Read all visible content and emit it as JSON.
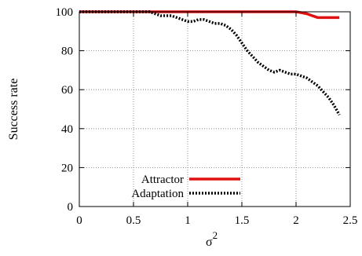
{
  "chart_data": {
    "type": "line",
    "title": "",
    "xlabel": "σ",
    "xlabel_superscript": "2",
    "ylabel": "Success rate",
    "xlim": [
      0,
      2.5
    ],
    "ylim": [
      0,
      100
    ],
    "xticks": [
      "0",
      "0.5",
      "1",
      "1.5",
      "2",
      "2.5"
    ],
    "xtick_values": [
      0,
      0.5,
      1,
      1.5,
      2,
      2.5
    ],
    "yticks": [
      "0",
      "20",
      "40",
      "60",
      "80",
      "100"
    ],
    "ytick_values": [
      0,
      20,
      40,
      60,
      80,
      100
    ],
    "grid": true,
    "grid_style": "dotted",
    "legend_position": "bottom-left",
    "series": [
      {
        "name": "Attractor",
        "color": "#e01010",
        "style": "solid",
        "x": [
          0,
          0.5,
          1.0,
          1.5,
          2.0,
          2.05,
          2.1,
          2.15,
          2.2,
          2.25,
          2.3,
          2.35,
          2.4
        ],
        "y": [
          100,
          100,
          100,
          100,
          100,
          99.5,
          99,
          98,
          97,
          97,
          97,
          97,
          97
        ]
      },
      {
        "name": "Adaptation",
        "color": "#000000",
        "style": "dotted",
        "x": [
          0,
          0.5,
          0.65,
          0.7,
          0.75,
          0.8,
          0.85,
          0.9,
          0.95,
          1.0,
          1.05,
          1.1,
          1.15,
          1.2,
          1.25,
          1.3,
          1.35,
          1.4,
          1.45,
          1.5,
          1.55,
          1.6,
          1.65,
          1.7,
          1.75,
          1.8,
          1.85,
          1.9,
          1.95,
          2.0,
          2.05,
          2.1,
          2.15,
          2.2,
          2.25,
          2.3,
          2.35,
          2.4
        ],
        "y": [
          100,
          100,
          100,
          99,
          98,
          98,
          98,
          97,
          96,
          95,
          95,
          96,
          96,
          95,
          94,
          94,
          93,
          91,
          88,
          84,
          80,
          77,
          74,
          72,
          70,
          69,
          70,
          69,
          68,
          68,
          67,
          66,
          64,
          62,
          59,
          56,
          52,
          47
        ]
      }
    ]
  }
}
